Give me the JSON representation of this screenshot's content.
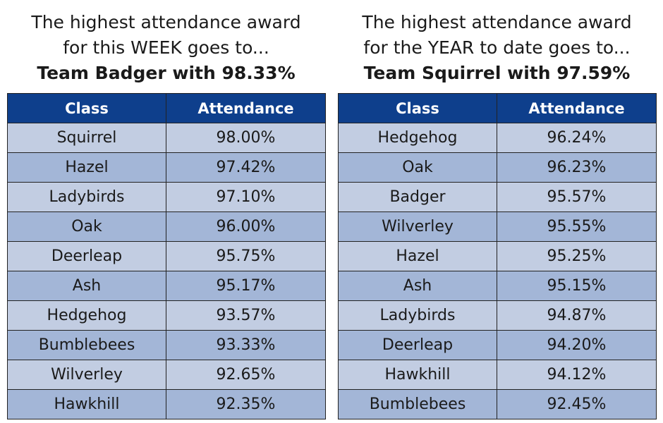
{
  "week": {
    "heading_line1": "The highest attendance award",
    "heading_line2": "for this WEEK goes to...",
    "winner": "Team Badger with 98.33%",
    "col_class": "Class",
    "col_attendance": "Attendance",
    "rows": [
      {
        "cls": "Squirrel",
        "pct": "98.00%"
      },
      {
        "cls": "Hazel",
        "pct": "97.42%"
      },
      {
        "cls": "Ladybirds",
        "pct": "97.10%"
      },
      {
        "cls": "Oak",
        "pct": "96.00%"
      },
      {
        "cls": "Deerleap",
        "pct": "95.75%"
      },
      {
        "cls": "Ash",
        "pct": "95.17%"
      },
      {
        "cls": "Hedgehog",
        "pct": "93.57%"
      },
      {
        "cls": "Bumblebees",
        "pct": "93.33%"
      },
      {
        "cls": "Wilverley",
        "pct": "92.65%"
      },
      {
        "cls": "Hawkhill",
        "pct": "92.35%"
      }
    ]
  },
  "year": {
    "heading_line1": "The highest attendance award",
    "heading_line2": "for the YEAR to date goes to...",
    "winner": "Team Squirrel with 97.59%",
    "col_class": "Class",
    "col_attendance": "Attendance",
    "rows": [
      {
        "cls": "Hedgehog",
        "pct": "96.24%"
      },
      {
        "cls": "Oak",
        "pct": "96.23%"
      },
      {
        "cls": "Badger",
        "pct": "95.57%"
      },
      {
        "cls": "Wilverley",
        "pct": "95.55%"
      },
      {
        "cls": "Hazel",
        "pct": "95.25%"
      },
      {
        "cls": "Ash",
        "pct": "95.15%"
      },
      {
        "cls": "Ladybirds",
        "pct": "94.87%"
      },
      {
        "cls": "Deerleap",
        "pct": "94.20%"
      },
      {
        "cls": "Hawkhill",
        "pct": "94.12%"
      },
      {
        "cls": "Bumblebees",
        "pct": "92.45%"
      }
    ]
  },
  "colors": {
    "header_bg": "#0e3f8c",
    "row_light": "#c2cde2",
    "row_dark": "#a3b6d7"
  }
}
